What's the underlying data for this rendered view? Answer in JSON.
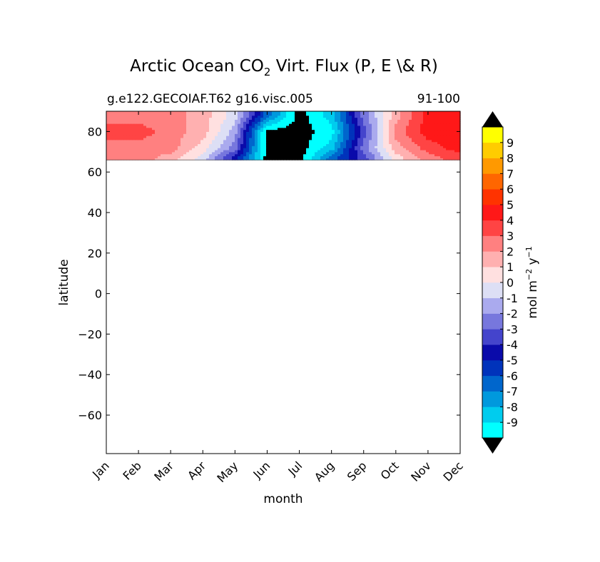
{
  "chart_data": {
    "type": "heatmap",
    "title": {
      "prefix": "Arctic Ocean CO",
      "subscript": "2",
      "suffix": " Virt. Flux (P, E \\& R)"
    },
    "subtitle_left": "g.e122.GECOIAF.T62 g16.visc.005",
    "subtitle_right": "91-100",
    "xlabel": "month",
    "ylabel": "latitude",
    "x_categories": [
      "Jan",
      "Feb",
      "Mar",
      "Apr",
      "May",
      "Jun",
      "Jul",
      "Aug",
      "Sep",
      "Oct",
      "Nov",
      "Dec"
    ],
    "xlim": [
      1,
      12
    ],
    "ylim": [
      -79,
      90
    ],
    "y_ticks": [
      80,
      60,
      40,
      20,
      0,
      -20,
      -40,
      -60
    ],
    "y_tick_labels": [
      "80",
      "60",
      "40",
      "20",
      "0",
      "−20",
      "−40",
      "−60"
    ],
    "data_lat_min": 66,
    "grid": false,
    "colorbar": {
      "label": {
        "base": "mol m",
        "exp1": "−2",
        "mid": "  y",
        "exp2": "−1"
      },
      "levels": [
        -9,
        -8,
        -7,
        -6,
        -5,
        -4,
        -3,
        -2,
        -1,
        0,
        1,
        2,
        3,
        4,
        5,
        6,
        7,
        8,
        9
      ],
      "level_labels": [
        "-9",
        "-8",
        "-7",
        "-6",
        "-5",
        "-4",
        "-3",
        "-2",
        "-1",
        "0",
        "1",
        "2",
        "3",
        "4",
        "5",
        "6",
        "7",
        "8",
        "9"
      ],
      "colors": [
        "#00ffff",
        "#00ccee",
        "#0099dd",
        "#0066cc",
        "#0033bb",
        "#0a0aaa",
        "#4444cc",
        "#7777dd",
        "#aaaaee",
        "#dddff5",
        "#ffe0e0",
        "#ffb0b0",
        "#ff8080",
        "#ff4444",
        "#ff1818",
        "#ff3300",
        "#ff6600",
        "#ff9900",
        "#ffcc00",
        "#ffff00"
      ],
      "under_color": "#000000",
      "over_color": "#000000",
      "extend": "both"
    },
    "monthly_profile": {
      "months": [
        1,
        2,
        3,
        4,
        5,
        6,
        7,
        8,
        9,
        10,
        11,
        12
      ],
      "values_by_lat": {
        "67": [
          3,
          3,
          2,
          0,
          -4,
          -10,
          -10,
          -6,
          -3,
          1,
          3,
          4
        ],
        "72": [
          3,
          3,
          3,
          1,
          -2,
          -10,
          -10,
          -8,
          -2,
          2,
          4,
          5
        ],
        "80": [
          4,
          4,
          3,
          2,
          -1,
          -10,
          -10,
          -9,
          -3,
          3,
          5,
          5
        ],
        "88": [
          3,
          3,
          3,
          2,
          0,
          -6,
          -10,
          -8,
          -2,
          2,
          5,
          5
        ]
      }
    }
  }
}
